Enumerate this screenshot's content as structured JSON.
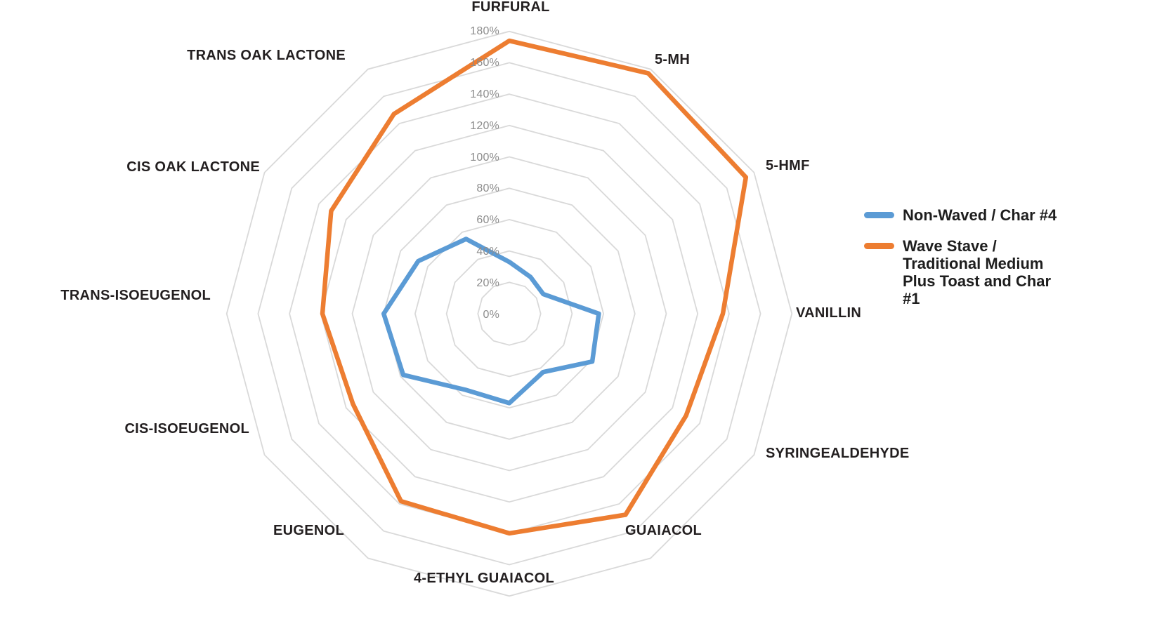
{
  "chart_data": {
    "type": "radar",
    "title": "",
    "categories": [
      "FURFURAL",
      "5-MH",
      "5-HMF",
      "VANILLIN",
      "SYRINGEALDEHYDE",
      "GUAIACOL",
      "4-ETHYL GUAIACOL",
      "EUGENOL",
      "CIS-ISOEUGENOL",
      "TRANS-ISOEUGENOL",
      "CIS OAK LACTONE",
      "TRANS OAK LACTONE"
    ],
    "series": [
      {
        "name": "Non-Waved / Char #4",
        "color": "#5B9BD5",
        "values": [
          33,
          27,
          25,
          57,
          61,
          43,
          57,
          56,
          78,
          80,
          67,
          55
        ]
      },
      {
        "name": "Wave Stave / Traditional Medium Plus Toast and Char #1",
        "color": "#ED7D31",
        "values": [
          174,
          177,
          174,
          136,
          130,
          148,
          140,
          138,
          115,
          119,
          131,
          147
        ]
      }
    ],
    "axis_ticks": [
      "0%",
      "20%",
      "40%",
      "60%",
      "80%",
      "100%",
      "120%",
      "140%",
      "160%",
      "180%"
    ],
    "tick_values": [
      0,
      20,
      40,
      60,
      80,
      100,
      120,
      140,
      160,
      180
    ],
    "axis_range": [
      0,
      180
    ],
    "grid": "concentric polygon rings every 20%, no radial spokes",
    "legend_position": "right"
  },
  "colors": {
    "background": "#ffffff",
    "gridline": "#d9d9d9",
    "tick_text": "#8c8c8c",
    "category_text": "#231f20",
    "series_blue": "#5B9BD5",
    "series_orange": "#ED7D31"
  }
}
